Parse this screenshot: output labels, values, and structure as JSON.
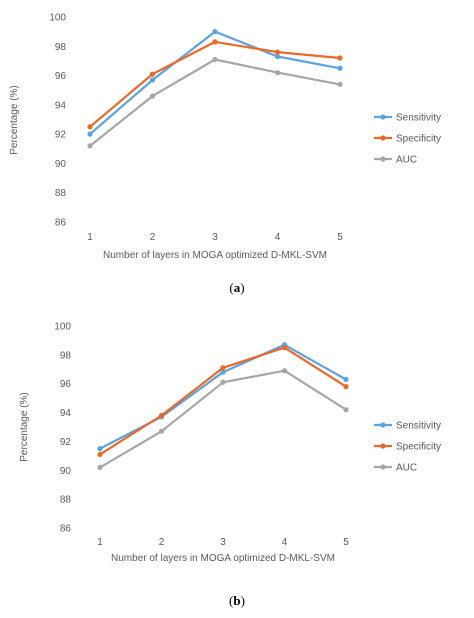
{
  "chart_data": [
    {
      "type": "line",
      "panel": "a",
      "caption": "(a)",
      "categories": [
        "1",
        "2",
        "3",
        "4",
        "5"
      ],
      "xlabel": "Number of layers in MOGA optimized D-MKL-SVM",
      "ylabel": "Percentage (%)",
      "ylim": [
        86,
        100
      ],
      "yticks": [
        "86",
        "88",
        "90",
        "92",
        "94",
        "96",
        "98",
        "100"
      ],
      "grid": false,
      "legend": "right",
      "series": [
        {
          "name": "Sensitivity",
          "color": "#5ba3e0",
          "values": [
            92.0,
            95.7,
            99.0,
            97.3,
            96.5
          ]
        },
        {
          "name": "Specificity",
          "color": "#e8692a",
          "values": [
            92.5,
            96.1,
            98.3,
            97.6,
            97.2
          ]
        },
        {
          "name": "AUC",
          "color": "#a6a6a6",
          "values": [
            91.2,
            94.6,
            97.1,
            96.2,
            95.4
          ]
        }
      ]
    },
    {
      "type": "line",
      "panel": "b",
      "caption": "(b)",
      "categories": [
        "1",
        "2",
        "3",
        "4",
        "5"
      ],
      "xlabel": "Number of layers in MOGA optimized D-MKL-SVM",
      "ylabel": "Percentage (%)",
      "ylim": [
        86,
        100
      ],
      "yticks": [
        "86",
        "88",
        "90",
        "92",
        "94",
        "96",
        "98",
        "100"
      ],
      "grid": false,
      "legend": "right",
      "series": [
        {
          "name": "Sensitivity",
          "color": "#5ba3e0",
          "values": [
            91.5,
            93.7,
            96.8,
            98.7,
            96.3
          ]
        },
        {
          "name": "Specificity",
          "color": "#e8692a",
          "values": [
            91.1,
            93.8,
            97.1,
            98.5,
            95.8
          ]
        },
        {
          "name": "AUC",
          "color": "#a6a6a6",
          "values": [
            90.2,
            92.7,
            96.1,
            96.9,
            94.2
          ]
        }
      ]
    }
  ]
}
